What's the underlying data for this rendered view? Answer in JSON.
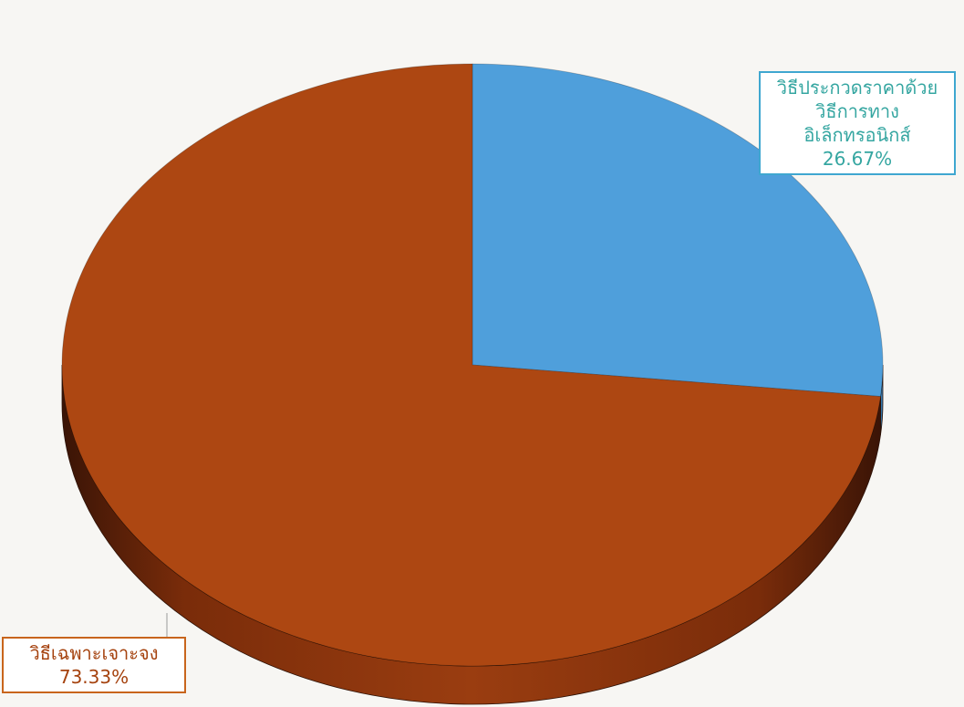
{
  "chart_data": {
    "type": "pie",
    "style": "3d",
    "title": "",
    "legend": "none",
    "categories": [
      "วิธีประกวดราคาด้วยวิธีการทางอิเล็กทรอนิกส์",
      "วิธีเฉพาะเจาะจง"
    ],
    "values": [
      26.67,
      73.33
    ],
    "colors": [
      "#4f9fdb",
      "#ad4712"
    ],
    "data_labels": [
      {
        "lines": [
          "วิธีประกวดราคาด้วย",
          "วิธีการทาง",
          "อิเล็กทรอนิกส์"
        ],
        "value": "26.67%"
      },
      {
        "lines": [
          "วิธีเฉพาะเจาะจง"
        ],
        "value": "73.33%"
      }
    ]
  }
}
